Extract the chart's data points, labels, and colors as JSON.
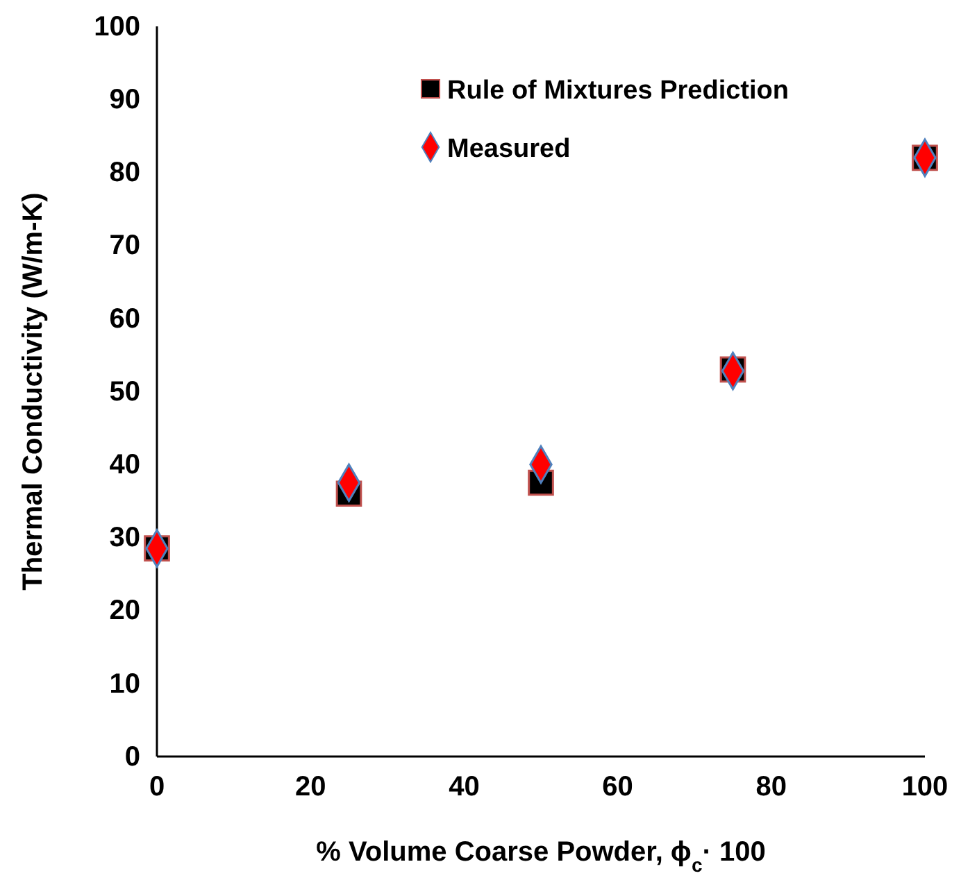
{
  "chart_data": {
    "type": "scatter",
    "xlabel": "% Volume Coarse Powder, ϕ$_{c}$· 100",
    "ylabel": "Thermal Conductivity (W/m-K)",
    "x": [
      0,
      25,
      50,
      75,
      100
    ],
    "series": [
      {
        "name": "Rule of Mixtures Prediction",
        "color": "#000000",
        "marker": "square",
        "values": [
          28.5,
          36,
          37.5,
          53,
          82
        ]
      },
      {
        "name": "Measured",
        "color": "#ff0000",
        "marker": "diamond",
        "values": [
          28.5,
          37.5,
          40,
          52.8,
          82
        ]
      }
    ],
    "xlim": [
      0,
      100
    ],
    "xticks": [
      0,
      20,
      40,
      60,
      80,
      100
    ],
    "ylim": [
      0,
      100
    ],
    "yticks": [
      0,
      10,
      20,
      30,
      40,
      50,
      60,
      70,
      80,
      90,
      100
    ],
    "legend": "top"
  }
}
